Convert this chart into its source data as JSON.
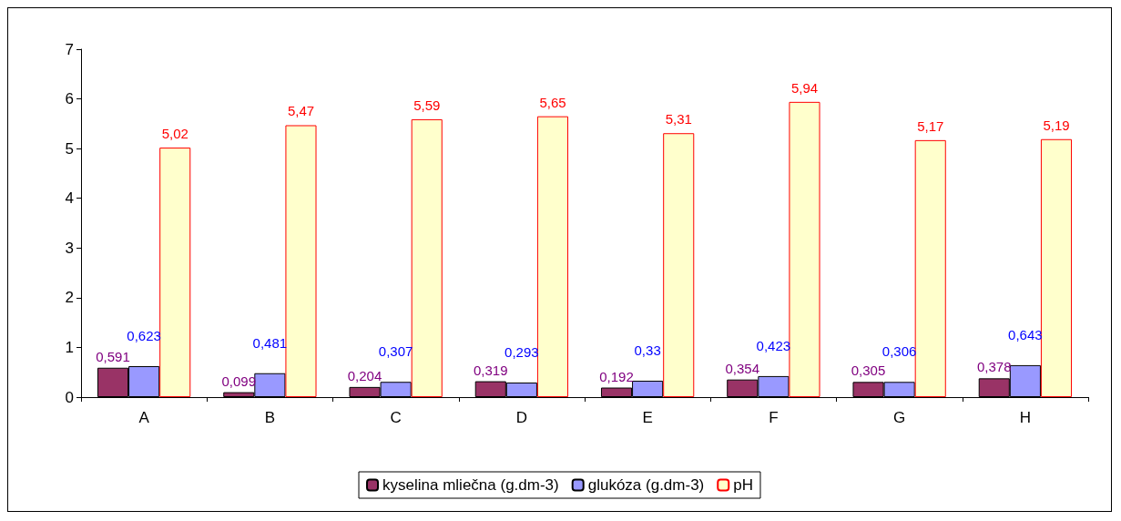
{
  "chart_data": {
    "type": "bar",
    "categories": [
      "A",
      "B",
      "C",
      "D",
      "E",
      "F",
      "G",
      "H"
    ],
    "series": [
      {
        "name": "kyselina mliečna (g.dm-3)",
        "color": "#993366",
        "values": [
          0.591,
          0.099,
          0.204,
          0.319,
          0.192,
          0.354,
          0.305,
          0.378
        ],
        "value_labels": [
          "0,591",
          "0,099",
          "0,204",
          "0,319",
          "0,192",
          "0,354",
          "0,305",
          "0,378"
        ]
      },
      {
        "name": "glukóza (g.dm-3)",
        "color": "#9999ff",
        "values": [
          0.623,
          0.481,
          0.307,
          0.293,
          0.33,
          0.423,
          0.306,
          0.643
        ],
        "value_labels": [
          "0,623",
          "0,481",
          "0,307",
          "0,293",
          "0,33",
          "0,423",
          "0,306",
          "0,643"
        ]
      },
      {
        "name": "pH",
        "color": "#ffffcc",
        "values": [
          5.02,
          5.47,
          5.59,
          5.65,
          5.31,
          5.94,
          5.17,
          5.19
        ],
        "value_labels": [
          "5,02",
          "5,47",
          "5,59",
          "5,65",
          "5,31",
          "5,94",
          "5,17",
          "5,19"
        ]
      }
    ],
    "ylim": [
      0,
      7
    ],
    "yticks": [
      0,
      1,
      2,
      3,
      4,
      5,
      6,
      7
    ],
    "grid": false,
    "legend": "bottom"
  }
}
